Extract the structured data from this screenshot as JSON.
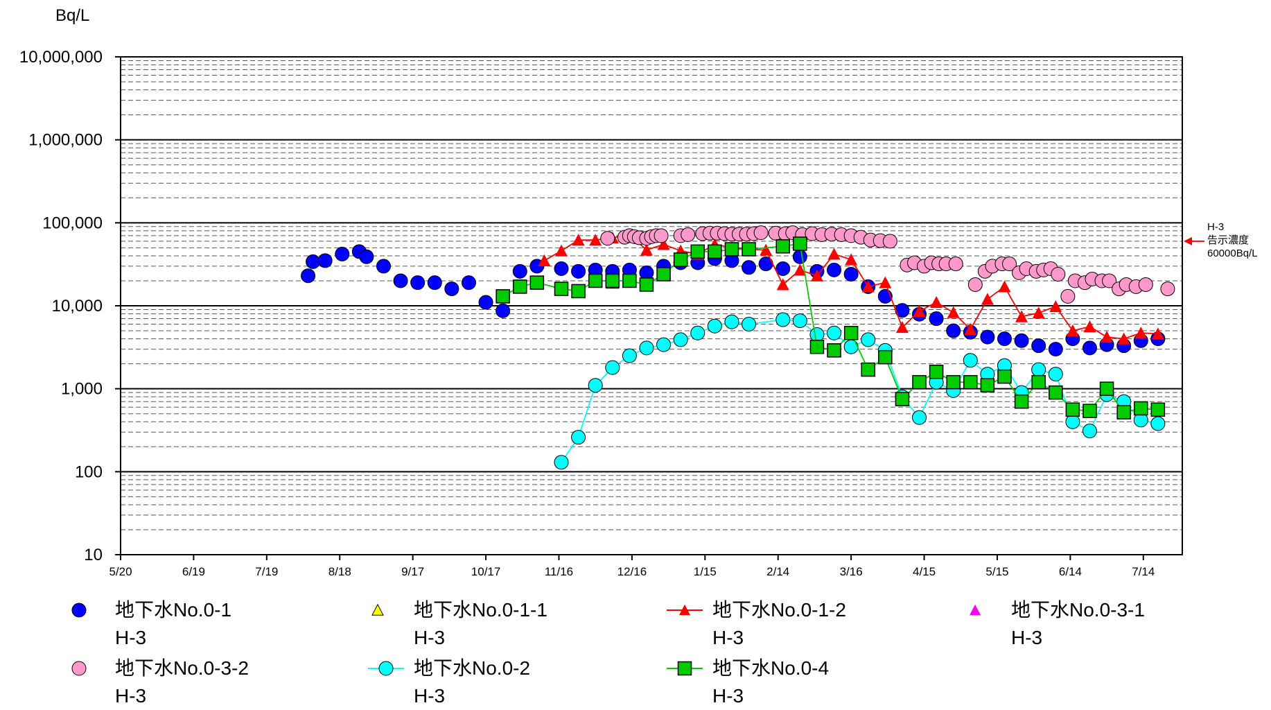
{
  "chart_data": {
    "type": "scatter",
    "title": "",
    "y_unit": "Bq/L",
    "y_scale": "log",
    "ylim": [
      10,
      10000000
    ],
    "y_ticks": [
      {
        "value": 10,
        "label": "10"
      },
      {
        "value": 100,
        "label": "100"
      },
      {
        "value": 1000,
        "label": "1,000"
      },
      {
        "value": 10000,
        "label": "10,000"
      },
      {
        "value": 100000,
        "label": "100,000"
      },
      {
        "value": 1000000,
        "label": "1,000,000"
      },
      {
        "value": 10000000,
        "label": "10,000,000"
      }
    ],
    "x_range": [
      "2013-05-20",
      "2014-07-30"
    ],
    "x_ticks": [
      {
        "date": "2013-05-20",
        "label": "5/20"
      },
      {
        "date": "2013-06-19",
        "label": "6/19"
      },
      {
        "date": "2013-07-19",
        "label": "7/19"
      },
      {
        "date": "2013-08-18",
        "label": "8/18"
      },
      {
        "date": "2013-09-17",
        "label": "9/17"
      },
      {
        "date": "2013-10-17",
        "label": "10/17"
      },
      {
        "date": "2013-11-16",
        "label": "11/16"
      },
      {
        "date": "2013-12-16",
        "label": "12/16"
      },
      {
        "date": "2014-01-15",
        "label": "1/15"
      },
      {
        "date": "2014-02-14",
        "label": "2/14"
      },
      {
        "date": "2014-03-16",
        "label": "3/16"
      },
      {
        "date": "2014-04-15",
        "label": "4/15"
      },
      {
        "date": "2014-05-15",
        "label": "5/15"
      },
      {
        "date": "2014-06-14",
        "label": "6/14"
      },
      {
        "date": "2014-07-14",
        "label": "7/14"
      }
    ],
    "grid": true,
    "legend_position": "bottom",
    "annotation": {
      "lines": [
        "H-3",
        "告示濃度",
        "60000Bq/L"
      ],
      "value": 60000
    },
    "series": [
      {
        "name": "地下水No.0-1",
        "sub": "H-3",
        "marker": "circle",
        "color": "#0000ff",
        "line": false,
        "points": [
          [
            "2013-08-05",
            23000
          ],
          [
            "2013-08-07",
            34000
          ],
          [
            "2013-08-12",
            35000
          ],
          [
            "2013-08-19",
            42000
          ],
          [
            "2013-08-26",
            45000
          ],
          [
            "2013-08-29",
            39000
          ],
          [
            "2013-09-05",
            30000
          ],
          [
            "2013-09-12",
            20000
          ],
          [
            "2013-09-19",
            19000
          ],
          [
            "2013-09-26",
            19000
          ],
          [
            "2013-10-03",
            16000
          ],
          [
            "2013-10-10",
            19000
          ],
          [
            "2013-10-17",
            11000
          ],
          [
            "2013-10-24",
            8700
          ],
          [
            "2013-10-31",
            26000
          ],
          [
            "2013-11-07",
            30000
          ],
          [
            "2013-11-17",
            28000
          ],
          [
            "2013-11-24",
            26000
          ],
          [
            "2013-12-01",
            27000
          ],
          [
            "2013-12-08",
            26000
          ],
          [
            "2013-12-15",
            27000
          ],
          [
            "2013-12-22",
            25000
          ],
          [
            "2013-12-29",
            30000
          ],
          [
            "2014-01-05",
            33000
          ],
          [
            "2014-01-12",
            33000
          ],
          [
            "2014-01-19",
            37000
          ],
          [
            "2014-01-26",
            35000
          ],
          [
            "2014-02-02",
            29000
          ],
          [
            "2014-02-09",
            32000
          ],
          [
            "2014-02-16",
            28000
          ],
          [
            "2014-02-23",
            39000
          ],
          [
            "2014-03-02",
            26000
          ],
          [
            "2014-03-09",
            27000
          ],
          [
            "2014-03-16",
            24000
          ],
          [
            "2014-03-23",
            17000
          ],
          [
            "2014-03-30",
            13000
          ],
          [
            "2014-04-06",
            8800
          ],
          [
            "2014-04-13",
            7900
          ],
          [
            "2014-04-20",
            7000
          ],
          [
            "2014-04-27",
            5000
          ],
          [
            "2014-05-04",
            4800
          ],
          [
            "2014-05-11",
            4200
          ],
          [
            "2014-05-18",
            4000
          ],
          [
            "2014-05-25",
            3800
          ],
          [
            "2014-06-01",
            3300
          ],
          [
            "2014-06-08",
            3000
          ],
          [
            "2014-06-15",
            4000
          ],
          [
            "2014-06-22",
            3100
          ],
          [
            "2014-06-29",
            3400
          ],
          [
            "2014-07-06",
            3300
          ],
          [
            "2014-07-13",
            3800
          ],
          [
            "2014-07-20",
            4000
          ]
        ]
      },
      {
        "name": "地下水No.0-1-1",
        "sub": "H-3",
        "marker": "triangle",
        "color": "#ffff00",
        "line": false,
        "points": [
          [
            "2013-12-08",
            19000
          ]
        ]
      },
      {
        "name": "地下水No.0-1-2",
        "sub": "H-3",
        "marker": "triangle",
        "color": "#ff0000",
        "line": true,
        "points": [
          [
            "2013-11-10",
            35000
          ],
          [
            "2013-11-17",
            46000
          ],
          [
            "2013-11-24",
            62000
          ],
          [
            "2013-12-01",
            62000
          ],
          [
            "2013-12-08",
            66000
          ],
          [
            "2013-12-15",
            72000
          ],
          [
            "2013-12-22",
            47000
          ],
          [
            "2013-12-29",
            55000
          ],
          [
            "2014-01-05",
            46000
          ],
          [
            "2014-01-12",
            42000
          ],
          [
            "2014-01-19",
            55000
          ],
          [
            "2014-01-26",
            50000
          ],
          [
            "2014-02-02",
            48000
          ],
          [
            "2014-02-09",
            47000
          ],
          [
            "2014-02-16",
            18000
          ],
          [
            "2014-02-23",
            27000
          ],
          [
            "2014-03-02",
            23000
          ],
          [
            "2014-03-09",
            42000
          ],
          [
            "2014-03-16",
            36000
          ],
          [
            "2014-03-23",
            17000
          ],
          [
            "2014-03-30",
            19000
          ],
          [
            "2014-04-06",
            5500
          ],
          [
            "2014-04-13",
            8600
          ],
          [
            "2014-04-20",
            11000
          ],
          [
            "2014-04-27",
            8300
          ],
          [
            "2014-05-04",
            5200
          ],
          [
            "2014-05-11",
            12000
          ],
          [
            "2014-05-18",
            17000
          ],
          [
            "2014-05-25",
            7400
          ],
          [
            "2014-06-01",
            8200
          ],
          [
            "2014-06-08",
            9800
          ],
          [
            "2014-06-15",
            5000
          ],
          [
            "2014-06-22",
            5600
          ],
          [
            "2014-06-29",
            4200
          ],
          [
            "2014-07-06",
            4000
          ],
          [
            "2014-07-13",
            4700
          ],
          [
            "2014-07-20",
            4600
          ]
        ]
      },
      {
        "name": "地下水No.0-3-1",
        "sub": "H-3",
        "marker": "triangle",
        "color": "#ff00ff",
        "line": false,
        "points": []
      },
      {
        "name": "地下水No.0-3-2",
        "sub": "H-3",
        "marker": "circle",
        "color": "#ff99cc",
        "line": false,
        "points": [
          [
            "2013-12-06",
            65000
          ],
          [
            "2013-12-13",
            67000
          ],
          [
            "2013-12-15",
            70000
          ],
          [
            "2013-12-17",
            68000
          ],
          [
            "2013-12-19",
            66000
          ],
          [
            "2013-12-22",
            65000
          ],
          [
            "2013-12-24",
            68000
          ],
          [
            "2013-12-26",
            70000
          ],
          [
            "2013-12-28",
            70000
          ],
          [
            "2014-01-05",
            70000
          ],
          [
            "2014-01-08",
            72000
          ],
          [
            "2014-01-14",
            74000
          ],
          [
            "2014-01-17",
            75000
          ],
          [
            "2014-01-20",
            75000
          ],
          [
            "2014-01-23",
            74000
          ],
          [
            "2014-01-26",
            73000
          ],
          [
            "2014-01-29",
            73000
          ],
          [
            "2014-02-01",
            73000
          ],
          [
            "2014-02-04",
            74000
          ],
          [
            "2014-02-07",
            76000
          ],
          [
            "2014-02-13",
            75000
          ],
          [
            "2014-02-17",
            74000
          ],
          [
            "2014-02-20",
            76000
          ],
          [
            "2014-02-24",
            72000
          ],
          [
            "2014-02-28",
            74000
          ],
          [
            "2014-03-04",
            72000
          ],
          [
            "2014-03-08",
            73000
          ],
          [
            "2014-03-12",
            72000
          ],
          [
            "2014-03-16",
            70000
          ],
          [
            "2014-03-20",
            67000
          ],
          [
            "2014-03-24",
            62000
          ],
          [
            "2014-03-28",
            61000
          ],
          [
            "2014-04-01",
            60000
          ],
          [
            "2014-04-08",
            31000
          ],
          [
            "2014-04-11",
            33000
          ],
          [
            "2014-04-15",
            30000
          ],
          [
            "2014-04-18",
            33000
          ],
          [
            "2014-04-21",
            32000
          ],
          [
            "2014-04-24",
            32000
          ],
          [
            "2014-04-28",
            32000
          ],
          [
            "2014-05-06",
            18000
          ],
          [
            "2014-05-10",
            26000
          ],
          [
            "2014-05-13",
            30000
          ],
          [
            "2014-05-17",
            32000
          ],
          [
            "2014-05-20",
            32000
          ],
          [
            "2014-05-24",
            25000
          ],
          [
            "2014-05-27",
            28000
          ],
          [
            "2014-05-31",
            26000
          ],
          [
            "2014-06-03",
            27000
          ],
          [
            "2014-06-06",
            28000
          ],
          [
            "2014-06-09",
            24000
          ],
          [
            "2014-06-13",
            13000
          ],
          [
            "2014-06-16",
            20000
          ],
          [
            "2014-06-20",
            19000
          ],
          [
            "2014-06-23",
            21000
          ],
          [
            "2014-06-27",
            20000
          ],
          [
            "2014-06-30",
            20000
          ],
          [
            "2014-07-04",
            16000
          ],
          [
            "2014-07-07",
            18000
          ],
          [
            "2014-07-11",
            17000
          ],
          [
            "2014-07-15",
            18000
          ],
          [
            "2014-07-24",
            16000
          ]
        ]
      },
      {
        "name": "地下水No.0-2",
        "sub": "H-3",
        "marker": "circle",
        "color": "#00ffff",
        "line": true,
        "points": [
          [
            "2013-11-17",
            130
          ],
          [
            "2013-11-24",
            260
          ],
          [
            "2013-12-01",
            1100
          ],
          [
            "2013-12-08",
            1800
          ],
          [
            "2013-12-15",
            2500
          ],
          [
            "2013-12-22",
            3100
          ],
          [
            "2013-12-29",
            3400
          ],
          [
            "2014-01-05",
            3900
          ],
          [
            "2014-01-12",
            4700
          ],
          [
            "2014-01-19",
            5700
          ],
          [
            "2014-01-26",
            6400
          ],
          [
            "2014-02-02",
            6000
          ],
          [
            "2014-02-16",
            6800
          ],
          [
            "2014-02-23",
            6600
          ],
          [
            "2014-03-02",
            4500
          ],
          [
            "2014-03-09",
            4700
          ],
          [
            "2014-03-16",
            3200
          ],
          [
            "2014-03-23",
            3900
          ],
          [
            "2014-03-30",
            2900
          ],
          [
            "2014-04-06",
            800
          ],
          [
            "2014-04-13",
            450
          ],
          [
            "2014-04-20",
            1200
          ],
          [
            "2014-04-27",
            950
          ],
          [
            "2014-05-04",
            2200
          ],
          [
            "2014-05-11",
            1500
          ],
          [
            "2014-05-18",
            1900
          ],
          [
            "2014-05-25",
            900
          ],
          [
            "2014-06-01",
            1700
          ],
          [
            "2014-06-08",
            1500
          ],
          [
            "2014-06-15",
            400
          ],
          [
            "2014-06-22",
            310
          ],
          [
            "2014-06-29",
            850
          ],
          [
            "2014-07-06",
            700
          ],
          [
            "2014-07-13",
            420
          ],
          [
            "2014-07-20",
            380
          ]
        ]
      },
      {
        "name": "地下水No.0-4",
        "sub": "H-3",
        "marker": "square",
        "color": "#00cc00",
        "line": true,
        "points": [
          [
            "2013-10-24",
            13000
          ],
          [
            "2013-10-31",
            17000
          ],
          [
            "2013-11-07",
            19000
          ],
          [
            "2013-11-17",
            16000
          ],
          [
            "2013-11-24",
            15000
          ],
          [
            "2013-12-01",
            20000
          ],
          [
            "2013-12-08",
            20000
          ],
          [
            "2013-12-15",
            20000
          ],
          [
            "2013-12-22",
            18000
          ],
          [
            "2013-12-29",
            24000
          ],
          [
            "2014-01-05",
            36000
          ],
          [
            "2014-01-12",
            45000
          ],
          [
            "2014-01-19",
            45000
          ],
          [
            "2014-01-26",
            48000
          ],
          [
            "2014-02-02",
            48000
          ],
          [
            "2014-02-16",
            52000
          ],
          [
            "2014-02-23",
            56000
          ],
          [
            "2014-03-02",
            3200
          ],
          [
            "2014-03-09",
            2900
          ],
          [
            "2014-03-16",
            4700
          ],
          [
            "2014-03-23",
            1700
          ],
          [
            "2014-03-30",
            2400
          ],
          [
            "2014-04-06",
            750
          ],
          [
            "2014-04-13",
            1200
          ],
          [
            "2014-04-20",
            1600
          ],
          [
            "2014-04-27",
            1200
          ],
          [
            "2014-05-04",
            1200
          ],
          [
            "2014-05-11",
            1100
          ],
          [
            "2014-05-18",
            1400
          ],
          [
            "2014-05-25",
            700
          ],
          [
            "2014-06-01",
            1200
          ],
          [
            "2014-06-08",
            900
          ],
          [
            "2014-06-15",
            560
          ],
          [
            "2014-06-22",
            540
          ],
          [
            "2014-06-29",
            1000
          ],
          [
            "2014-07-06",
            520
          ],
          [
            "2014-07-13",
            580
          ],
          [
            "2014-07-20",
            560
          ]
        ]
      }
    ]
  }
}
